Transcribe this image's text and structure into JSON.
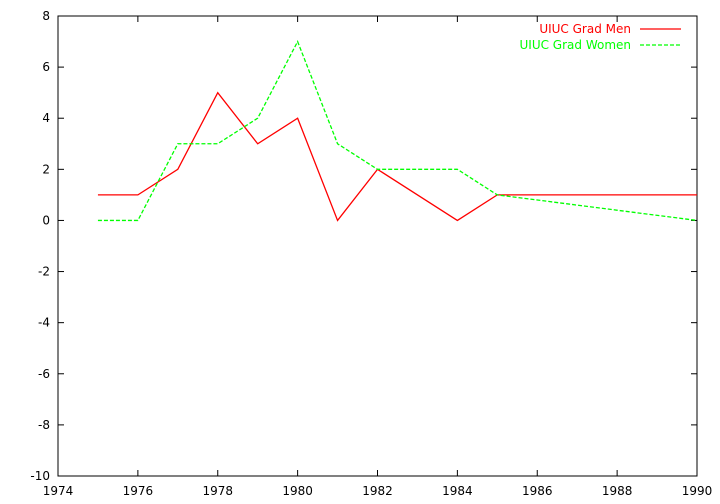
{
  "chart_data": {
    "type": "line",
    "title": "",
    "xlabel": "",
    "ylabel": "",
    "xlim": [
      1974,
      1990
    ],
    "ylim": [
      -10,
      8
    ],
    "xticks": [
      1974,
      1976,
      1978,
      1980,
      1982,
      1984,
      1986,
      1988,
      1990
    ],
    "yticks": [
      -10,
      -8,
      -6,
      -4,
      -2,
      0,
      2,
      4,
      6,
      8
    ],
    "grid": false,
    "legend_position": "top-right",
    "series": [
      {
        "name": "UIUC Grad Men",
        "color": "#ff0000",
        "dash": "solid",
        "x": [
          1975,
          1976,
          1977,
          1978,
          1979,
          1980,
          1981,
          1982,
          1984,
          1985,
          1990
        ],
        "y": [
          1,
          1,
          2,
          5,
          3,
          4,
          0,
          2,
          0,
          1,
          1
        ]
      },
      {
        "name": "UIUC Grad Women",
        "color": "#00ff00",
        "dash": "dashed",
        "x": [
          1975,
          1976,
          1977,
          1978,
          1979,
          1980,
          1981,
          1982,
          1984,
          1985,
          1990
        ],
        "y": [
          0,
          0,
          3,
          3,
          4,
          7,
          3,
          2,
          2,
          1,
          0
        ]
      }
    ]
  }
}
